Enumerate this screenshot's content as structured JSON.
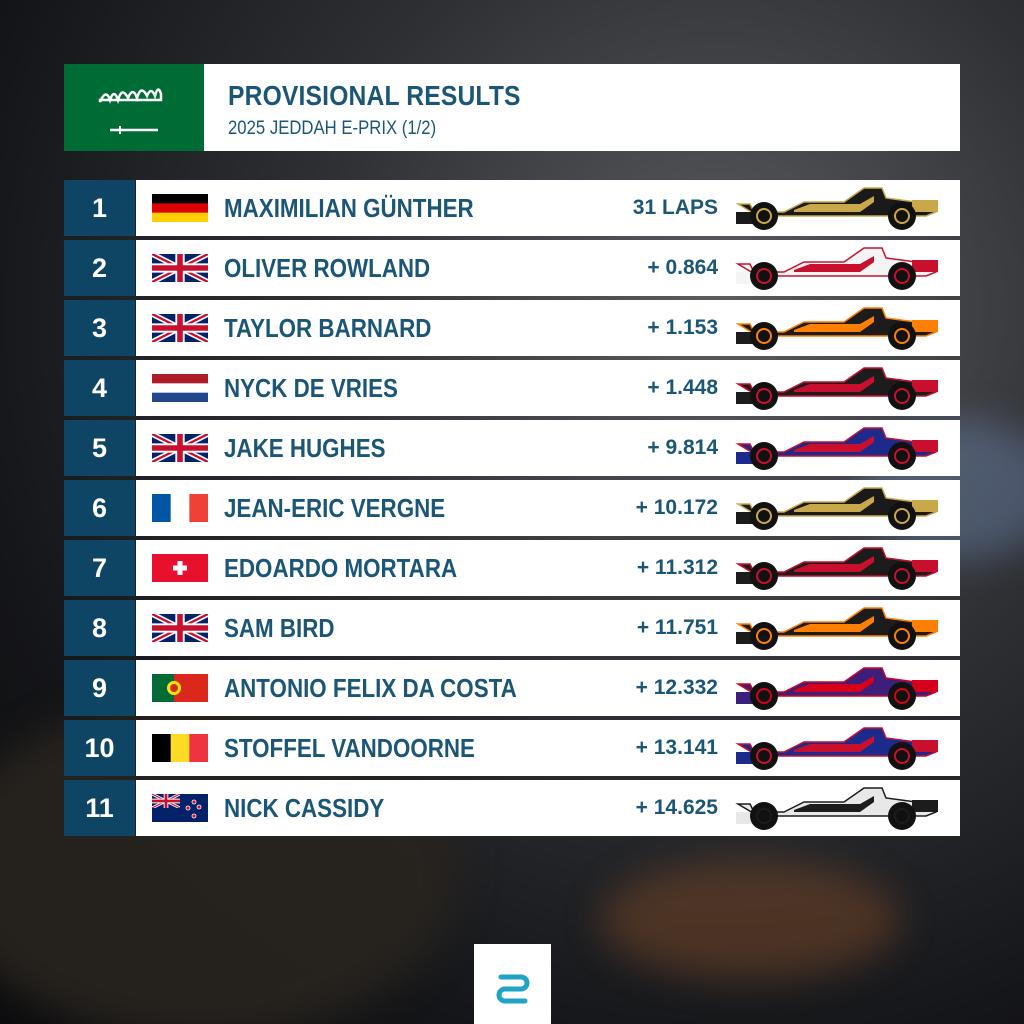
{
  "header": {
    "title": "PROVISIONAL RESULTS",
    "subtitle": "2025 JEDDAH E-PRIX (1/2)"
  },
  "results": [
    {
      "position": 1,
      "driver": "MAXIMILIAN GÜNTHER",
      "gap": "31 LAPS"
    },
    {
      "position": 2,
      "driver": "OLIVER ROWLAND",
      "gap": "+ 0.864"
    },
    {
      "position": 3,
      "driver": "TAYLOR BARNARD",
      "gap": "+ 1.153"
    },
    {
      "position": 4,
      "driver": "NYCK DE VRIES",
      "gap": "+ 1.448"
    },
    {
      "position": 5,
      "driver": "JAKE HUGHES",
      "gap": "+ 9.814"
    },
    {
      "position": 6,
      "driver": "JEAN-ERIC VERGNE",
      "gap": "+ 10.172"
    },
    {
      "position": 7,
      "driver": "EDOARDO MORTARA",
      "gap": "+ 11.312"
    },
    {
      "position": 8,
      "driver": "SAM BIRD",
      "gap": "+ 11.751"
    },
    {
      "position": 9,
      "driver": "ANTONIO FELIX DA COSTA",
      "gap": "+ 12.332"
    },
    {
      "position": 10,
      "driver": "STOFFEL VANDOORNE",
      "gap": "+ 13.141"
    },
    {
      "position": 11,
      "driver": "NICK CASSIDY",
      "gap": "+ 14.625"
    }
  ]
}
